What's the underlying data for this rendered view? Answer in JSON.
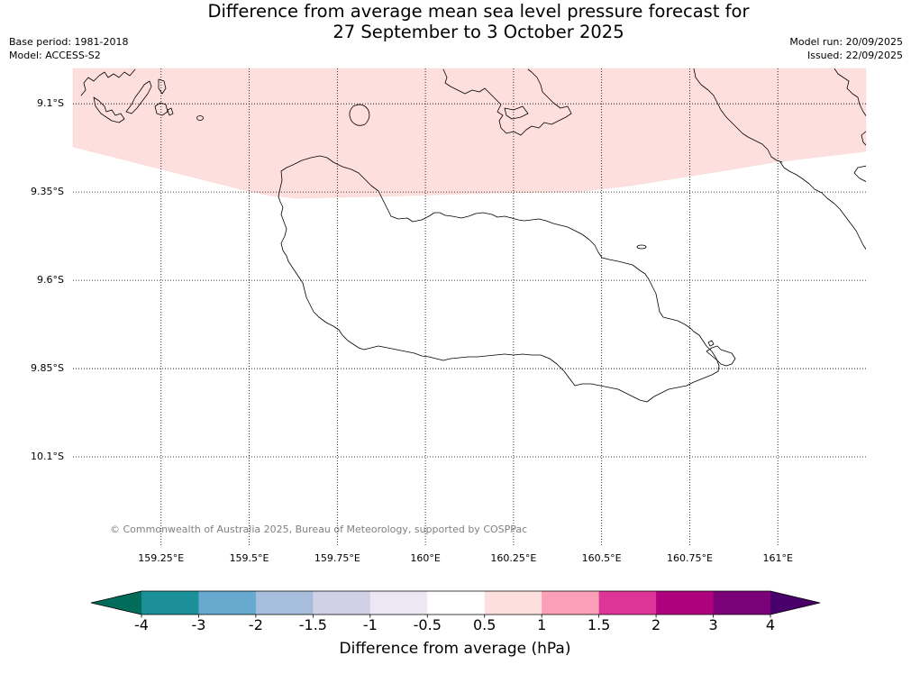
{
  "header": {
    "title_line1": "Difference from average mean sea level pressure forecast for",
    "title_line2": "27 September to 3 October 2025",
    "base_period": "Base period: 1981-2018",
    "model": "Model: ACCESS-S2",
    "model_run": "Model run: 20/09/2025",
    "issued": "Issued: 22/09/2025"
  },
  "map": {
    "extent": {
      "lon": [
        159.0,
        161.25
      ],
      "lat": [
        -10.35,
        -9.0
      ]
    },
    "meridians": [
      159.25,
      159.5,
      159.75,
      160.0,
      160.25,
      160.5,
      160.75,
      161.0
    ],
    "meridian_labels": [
      "159.25°E",
      "159.5°E",
      "159.75°E",
      "160°E",
      "160.25°E",
      "160.5°E",
      "160.75°E",
      "161°E"
    ],
    "parallels": [
      -9.1,
      -9.35,
      -9.6,
      -9.85,
      -10.1
    ],
    "parallel_labels": [
      "9.1°S",
      "9.35°S",
      "9.6°S",
      "9.85°S",
      "10.1°S"
    ],
    "grid": true,
    "shaded_region": {
      "range_hpa": [
        0.5,
        1
      ],
      "color": "#fde0dd"
    },
    "coastline_color": "#000000",
    "copyright": "© Commonwealth of Australia 2025, Bureau of Meteorology, supported by COSPPac"
  },
  "colorbar": {
    "label": "Difference from average (hPa)",
    "ticks": [
      "-4",
      "-3",
      "-2",
      "-1.5",
      "-1",
      "-0.5",
      "0.5",
      "1",
      "1.5",
      "2",
      "3",
      "4"
    ],
    "extend": "both",
    "under_color": "#016c59",
    "colors": [
      "#1c9099",
      "#67a9cf",
      "#a6bddb",
      "#d0d1e6",
      "#ece7f2",
      "#ffffff",
      "#fde0dd",
      "#fa9fb5",
      "#dd3497",
      "#ae017e",
      "#7a0177"
    ],
    "over_color": "#49006a"
  }
}
